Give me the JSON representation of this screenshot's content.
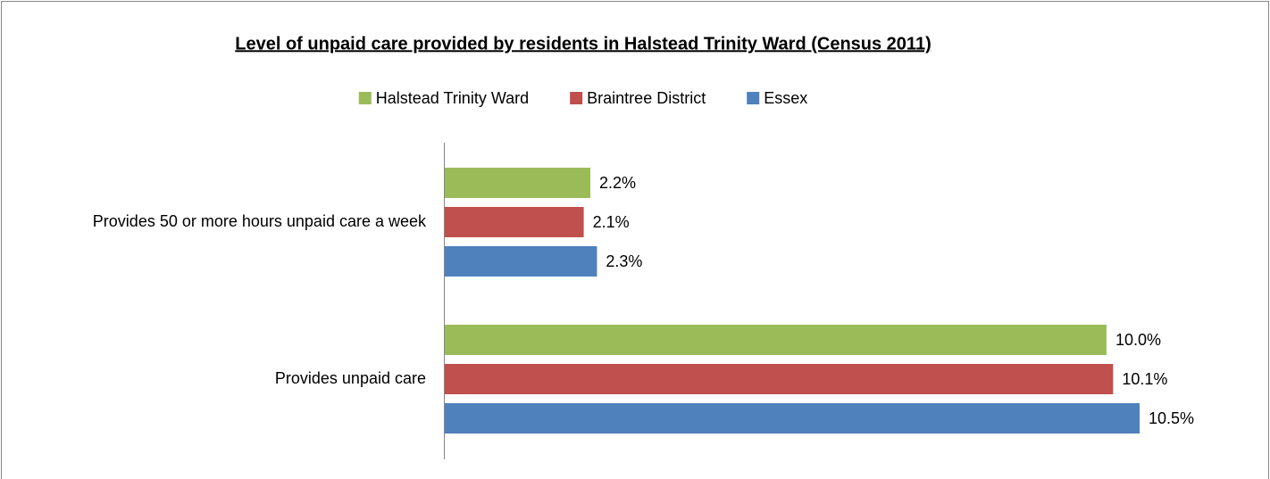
{
  "chart_data": {
    "type": "bar",
    "orientation": "horizontal",
    "title": "Level of unpaid care provided by residents in Halstead Trinity Ward (Census 2011)",
    "categories": [
      "Provides 50 or more hours unpaid care a week",
      "Provides unpaid care"
    ],
    "series": [
      {
        "name": "Halstead Trinity Ward",
        "color": "#9bbb59",
        "values": [
          2.2,
          10.0
        ],
        "value_labels": [
          "2.2%",
          "10.0%"
        ]
      },
      {
        "name": "Braintree District",
        "color": "#c0504d",
        "values": [
          2.1,
          10.1
        ],
        "value_labels": [
          "2.1%",
          "10.1%"
        ]
      },
      {
        "name": "Essex",
        "color": "#4f81bd",
        "values": [
          2.3,
          10.5
        ],
        "value_labels": [
          "2.3%",
          "10.5%"
        ]
      }
    ],
    "legend": "top"
  }
}
